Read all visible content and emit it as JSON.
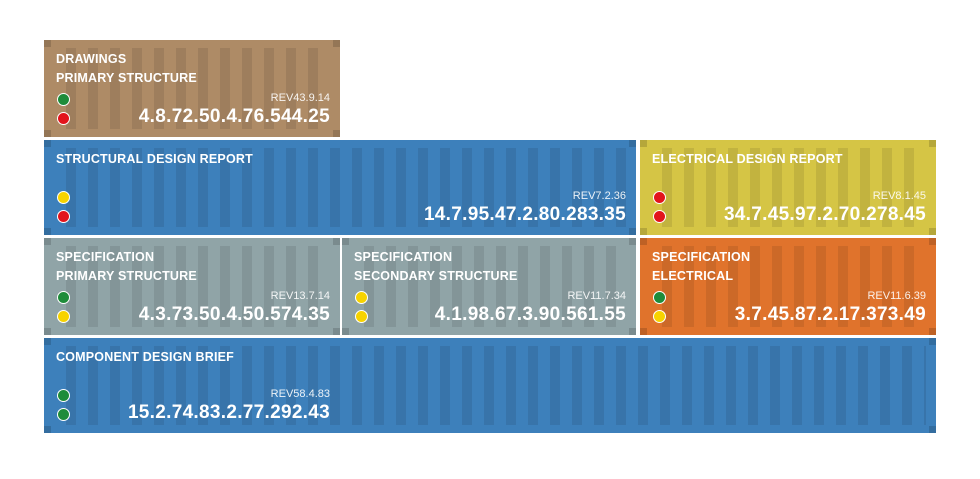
{
  "colors": {
    "green": "#1e8c3a",
    "red": "#e2141c",
    "yellow": "#f7d300"
  },
  "containers": [
    {
      "title1": "DRAWINGS",
      "title2": "PRIMARY STRUCTURE",
      "rev": "REV43.9.14",
      "number": "4.8.72.50.4.76.544.25",
      "color": "#ae8b66",
      "lights": [
        "green",
        "red"
      ]
    },
    {
      "title1": "STRUCTURAL DESIGN REPORT",
      "title2": "",
      "rev": "REV7.2.36",
      "number": "14.7.95.47.2.80.283.35",
      "color": "#3d80bb",
      "lights": [
        "yellow",
        "red"
      ]
    },
    {
      "title1": "ELECTRICAL DESIGN REPORT",
      "title2": "",
      "rev": "REV8.1.45",
      "number": "34.7.45.97.2.70.278.45",
      "color": "#d5c545",
      "lights": [
        "red",
        "red"
      ]
    },
    {
      "title1": "SPECIFICATION",
      "title2": "PRIMARY STRUCTURE",
      "rev": "REV13.7.14",
      "number": "4.3.73.50.4.50.574.35",
      "color": "#90a4a7",
      "lights": [
        "green",
        "yellow"
      ]
    },
    {
      "title1": "SPECIFICATION",
      "title2": "SECONDARY STRUCTURE",
      "rev": "REV11.7.34",
      "number": "4.1.98.67.3.90.561.55",
      "color": "#90a4a7",
      "lights": [
        "yellow",
        "yellow"
      ]
    },
    {
      "title1": "SPECIFICATION",
      "title2": "ELECTRICAL",
      "rev": "REV11.6.39",
      "number": "3.7.45.87.2.17.373.49",
      "color": "#e0732c",
      "lights": [
        "green",
        "yellow"
      ]
    },
    {
      "title1": "COMPONENT DESIGN BRIEF",
      "title2": "",
      "rev": "REV58.4.83",
      "number": "15.2.74.83.2.77.292.43",
      "color": "#3d80bb",
      "lights": [
        "green",
        "green"
      ]
    }
  ]
}
